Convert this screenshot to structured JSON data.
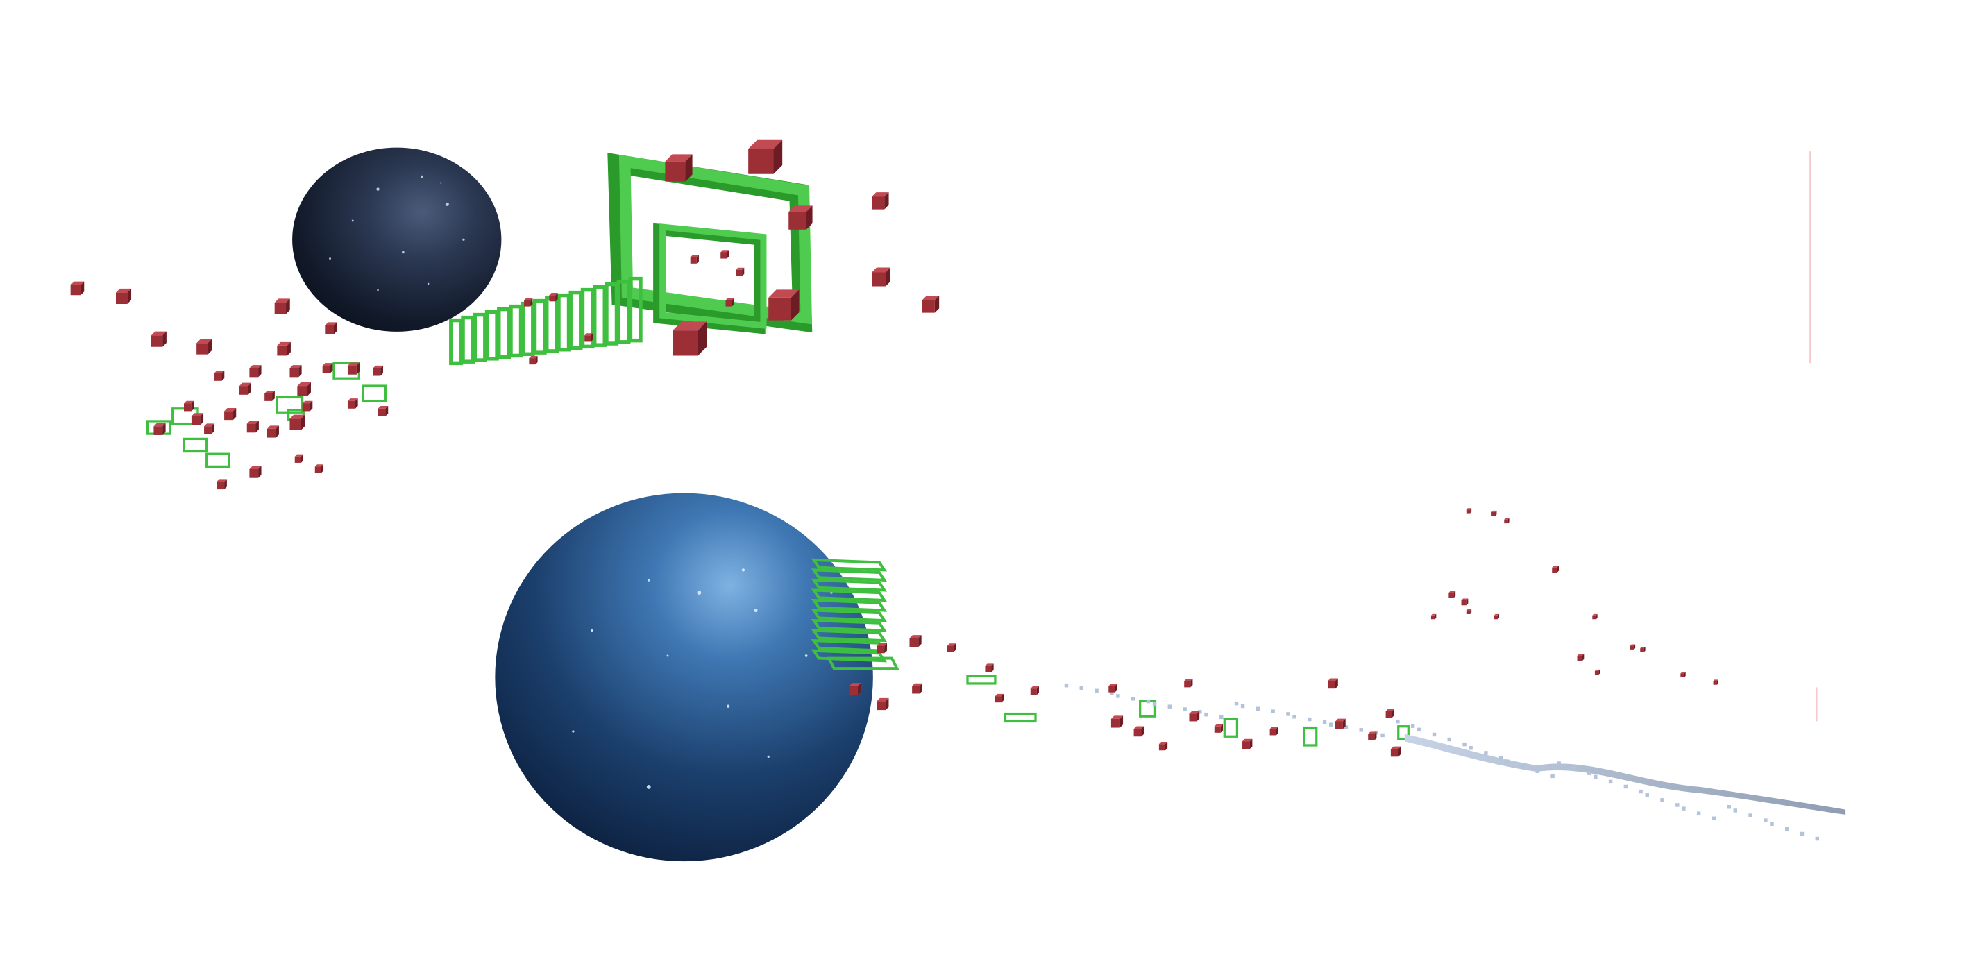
{
  "scene": {
    "background_color": "#ffffff",
    "cube_color": "#9c2e36",
    "cube_shade_color": "#6e1c24",
    "cube_light_color": "#c24a52",
    "ring_color": "#3fbf3f",
    "ring_dark_color": "#2a9a2a",
    "trail_color": "#b3c3d9",
    "far_planet": {
      "kind": "planet",
      "name": "dark-starry-planet"
    },
    "near_planet": {
      "kind": "planet",
      "name": "blue-starry-planet"
    }
  }
}
